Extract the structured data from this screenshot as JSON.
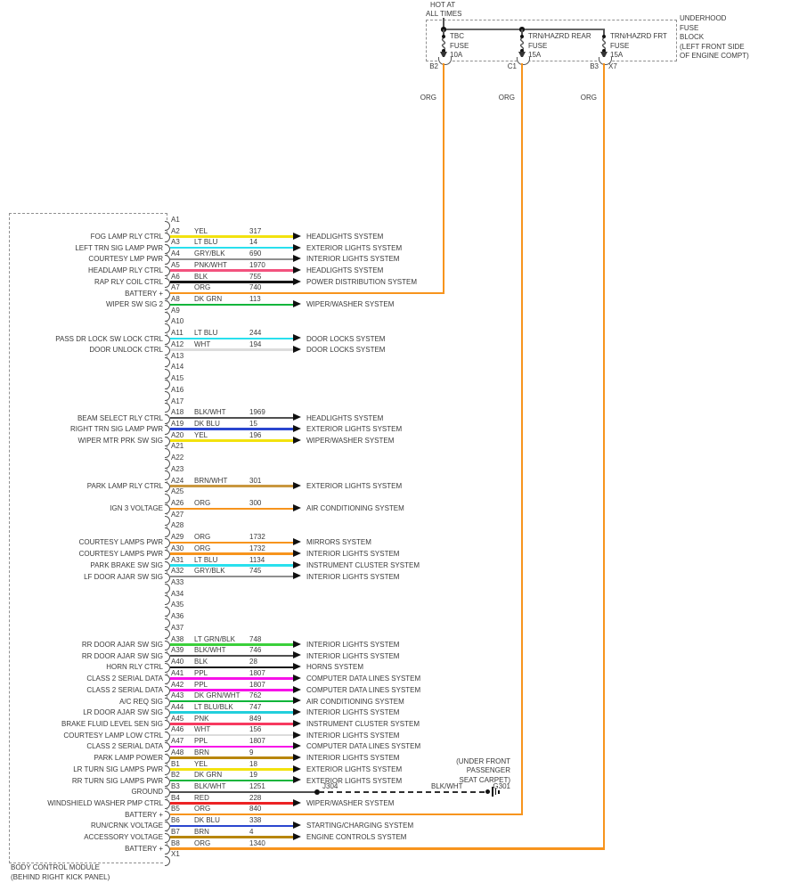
{
  "power": {
    "hot_line1": "HOT AT",
    "hot_line2": "ALL TIMES"
  },
  "fuse_block": {
    "label_lines": [
      "UNDERHOOD",
      "FUSE",
      "BLOCK",
      "(LEFT FRONT SIDE",
      "OF ENGINE COMPT)"
    ],
    "wire_label": "ORG",
    "fuses": [
      {
        "name_lines": [
          "TBC",
          "FUSE",
          "10A"
        ],
        "connector": "B2",
        "connector_right": ""
      },
      {
        "name_lines": [
          "TRN/HAZRD REAR",
          "FUSE",
          "15A"
        ],
        "connector": "C1",
        "connector_right": ""
      },
      {
        "name_lines": [
          "TRN/HAZRD FRT",
          "FUSE",
          "15A"
        ],
        "connector": "B3",
        "connector_right": "X7"
      }
    ]
  },
  "module": {
    "name_line1": "BODY CONTROL MODULE",
    "name_line2": "(BEHIND RIGHT KICK PANEL)",
    "pins": [
      {
        "id": "A1"
      },
      {
        "id": "A2",
        "func": "FOG LAMP RLY CTRL",
        "color": "YEL",
        "circuit": "317",
        "system": "HEADLIGHTS SYSTEM"
      },
      {
        "id": "A3",
        "func": "LEFT TRN SIG LAMP PWR",
        "color": "LT BLU",
        "circuit": "14",
        "system": "EXTERIOR LIGHTS SYSTEM"
      },
      {
        "id": "A4",
        "func": "COURTESY LMP PWR",
        "color": "GRY/BLK",
        "circuit": "690",
        "system": "INTERIOR LIGHTS SYSTEM"
      },
      {
        "id": "A5",
        "func": "HEADLAMP RLY CTRL",
        "color": "PNK/WHT",
        "circuit": "1970",
        "system": "HEADLIGHTS SYSTEM"
      },
      {
        "id": "A6",
        "func": "RAP RLY COIL CTRL",
        "color": "BLK",
        "circuit": "755",
        "system": "POWER DISTRIBUTION SYSTEM"
      },
      {
        "id": "A7",
        "func": "BATTERY +",
        "color": "ORG",
        "circuit": "740",
        "route": "fuse",
        "fuse_index": 0
      },
      {
        "id": "A8",
        "func": "WIPER SW SIG 2",
        "color": "DK GRN",
        "circuit": "113",
        "system": "WIPER/WASHER SYSTEM"
      },
      {
        "id": "A9"
      },
      {
        "id": "A10"
      },
      {
        "id": "A11",
        "func": "PASS DR LOCK SW LOCK CTRL",
        "color": "LT BLU",
        "circuit": "244",
        "system": "DOOR LOCKS SYSTEM"
      },
      {
        "id": "A12",
        "func": "DOOR UNLOCK CTRL",
        "color": "WHT",
        "circuit": "194",
        "system": "DOOR LOCKS SYSTEM"
      },
      {
        "id": "A13"
      },
      {
        "id": "A14"
      },
      {
        "id": "A15"
      },
      {
        "id": "A16"
      },
      {
        "id": "A17"
      },
      {
        "id": "A18",
        "func": "BEAM SELECT RLY CTRL",
        "color": "BLK/WHT",
        "circuit": "1969",
        "system": "HEADLIGHTS SYSTEM"
      },
      {
        "id": "A19",
        "func": "RIGHT TRN SIG LAMP PWR",
        "color": "DK BLU",
        "circuit": "15",
        "system": "EXTERIOR LIGHTS SYSTEM"
      },
      {
        "id": "A20",
        "func": "WIPER MTR PRK SW SIG",
        "color": "YEL",
        "circuit": "196",
        "system": "WIPER/WASHER SYSTEM"
      },
      {
        "id": "A21"
      },
      {
        "id": "A22"
      },
      {
        "id": "A23"
      },
      {
        "id": "A24",
        "func": "PARK LAMP RLY CTRL",
        "color": "BRN/WHT",
        "circuit": "301",
        "system": "EXTERIOR LIGHTS SYSTEM"
      },
      {
        "id": "A25"
      },
      {
        "id": "A26",
        "func": "IGN 3 VOLTAGE",
        "color": "ORG",
        "circuit": "300",
        "system": "AIR CONDITIONING SYSTEM"
      },
      {
        "id": "A27"
      },
      {
        "id": "A28"
      },
      {
        "id": "A29",
        "func": "COURTESY LAMPS PWR",
        "color": "ORG",
        "circuit": "1732",
        "system": "MIRRORS SYSTEM"
      },
      {
        "id": "A30",
        "func": "COURTESY LAMPS PWR",
        "color": "ORG",
        "circuit": "1732",
        "system": "INTERIOR LIGHTS SYSTEM"
      },
      {
        "id": "A31",
        "func": "PARK BRAKE SW SIG",
        "color": "LT BLU",
        "circuit": "1134",
        "system": "INSTRUMENT CLUSTER SYSTEM"
      },
      {
        "id": "A32",
        "func": "LF DOOR AJAR SW SIG",
        "color": "GRY/BLK",
        "circuit": "745",
        "system": "INTERIOR LIGHTS SYSTEM"
      },
      {
        "id": "A33"
      },
      {
        "id": "A34"
      },
      {
        "id": "A35"
      },
      {
        "id": "A36"
      },
      {
        "id": "A37"
      },
      {
        "id": "A38",
        "func": "RR DOOR AJAR SW SIG",
        "color": "LT GRN/BLK",
        "circuit": "748",
        "system": "INTERIOR LIGHTS SYSTEM"
      },
      {
        "id": "A39",
        "func": "RR DOOR AJAR SW SIG",
        "color": "BLK/WHT",
        "circuit": "746",
        "system": "INTERIOR LIGHTS SYSTEM"
      },
      {
        "id": "A40",
        "func": "HORN RLY CTRL",
        "color": "BLK",
        "circuit": "28",
        "system": "HORNS SYSTEM"
      },
      {
        "id": "A41",
        "func": "CLASS 2 SERIAL DATA",
        "color": "PPL",
        "circuit": "1807",
        "system": "COMPUTER DATA LINES SYSTEM"
      },
      {
        "id": "A42",
        "func": "CLASS 2 SERIAL DATA",
        "color": "PPL",
        "circuit": "1807",
        "system": "COMPUTER DATA LINES SYSTEM"
      },
      {
        "id": "A43",
        "func": "A/C REQ SIG",
        "color": "DK GRN/WHT",
        "circuit": "762",
        "system": "AIR CONDITIONING SYSTEM"
      },
      {
        "id": "A44",
        "func": "LR DOOR AJAR SW SIG",
        "color": "LT BLU/BLK",
        "circuit": "747",
        "system": "INTERIOR LIGHTS SYSTEM"
      },
      {
        "id": "A45",
        "func": "BRAKE FLUID LEVEL SEN SIG",
        "color": "PNK",
        "circuit": "849",
        "system": "INSTRUMENT CLUSTER SYSTEM"
      },
      {
        "id": "A46",
        "func": "COURTESY LAMP LOW CTRL",
        "color": "WHT",
        "circuit": "156",
        "system": "INTERIOR LIGHTS SYSTEM"
      },
      {
        "id": "A47",
        "func": "CLASS 2 SERIAL DATA",
        "color": "PPL",
        "circuit": "1807",
        "system": "COMPUTER DATA LINES SYSTEM"
      },
      {
        "id": "A48",
        "func": "PARK LAMP POWER",
        "color": "BRN",
        "circuit": "9",
        "system": "INTERIOR LIGHTS SYSTEM"
      },
      {
        "id": "B1",
        "func": "LR TURN SIG LAMPS PWR",
        "color": "YEL",
        "circuit": "18",
        "system": "EXTERIOR LIGHTS SYSTEM"
      },
      {
        "id": "B2",
        "func": "RR TURN SIG LAMPS PWR",
        "color": "DK GRN",
        "circuit": "19",
        "system": "EXTERIOR LIGHTS SYSTEM"
      },
      {
        "id": "B3",
        "func": "GROUND",
        "color": "BLK/WHT",
        "circuit": "1251",
        "route": "ground"
      },
      {
        "id": "B4",
        "func": "WINDSHIELD WASHER PMP CTRL",
        "color": "RED",
        "circuit": "228",
        "system": "WIPER/WASHER SYSTEM"
      },
      {
        "id": "B5",
        "func": "BATTERY +",
        "color": "ORG",
        "circuit": "840",
        "route": "fuse",
        "fuse_index": 1
      },
      {
        "id": "B6",
        "func": "RUN/CRNK VOLTAGE",
        "color": "DK BLU",
        "circuit": "338",
        "system": "STARTING/CHARGING SYSTEM"
      },
      {
        "id": "B7",
        "func": "ACCESSORY VOLTAGE",
        "color": "BRN",
        "circuit": "4",
        "system": "ENGINE CONTROLS SYSTEM"
      },
      {
        "id": "B8",
        "func": "BATTERY +",
        "color": "ORG",
        "circuit": "1340",
        "route": "fuse",
        "fuse_index": 2
      },
      {
        "id": "X1"
      }
    ]
  },
  "ground_path": {
    "junction": "J304",
    "wire_color_name": "BLK/WHT",
    "ground_id": "G301",
    "location_lines": [
      "(UNDER FRONT",
      "PASSENGER",
      "SEAT CARPET)"
    ]
  },
  "wire_colors": {
    "YEL": "#F2E20E",
    "LT BLU": "#29E0EE",
    "GRY/BLK": "#8F8F8F",
    "PNK/WHT": "#F2527E",
    "BLK": "#161616",
    "ORG": "#F7941D",
    "DK GRN": "#12B53C",
    "WHT": "#DCDCDC",
    "BLK/WHT": "#4F4F4F",
    "DK BLU": "#2A46CF",
    "BRN/WHT": "#C9973F",
    "BRN": "#B8860B",
    "LT GRN/BLK": "#3BD03B",
    "PPL": "#F712E8",
    "DK GRN/WHT": "#0EB53A",
    "LT BLU/BLK": "#22CFDC",
    "PNK": "#F73A60",
    "RED": "#EC2224"
  }
}
